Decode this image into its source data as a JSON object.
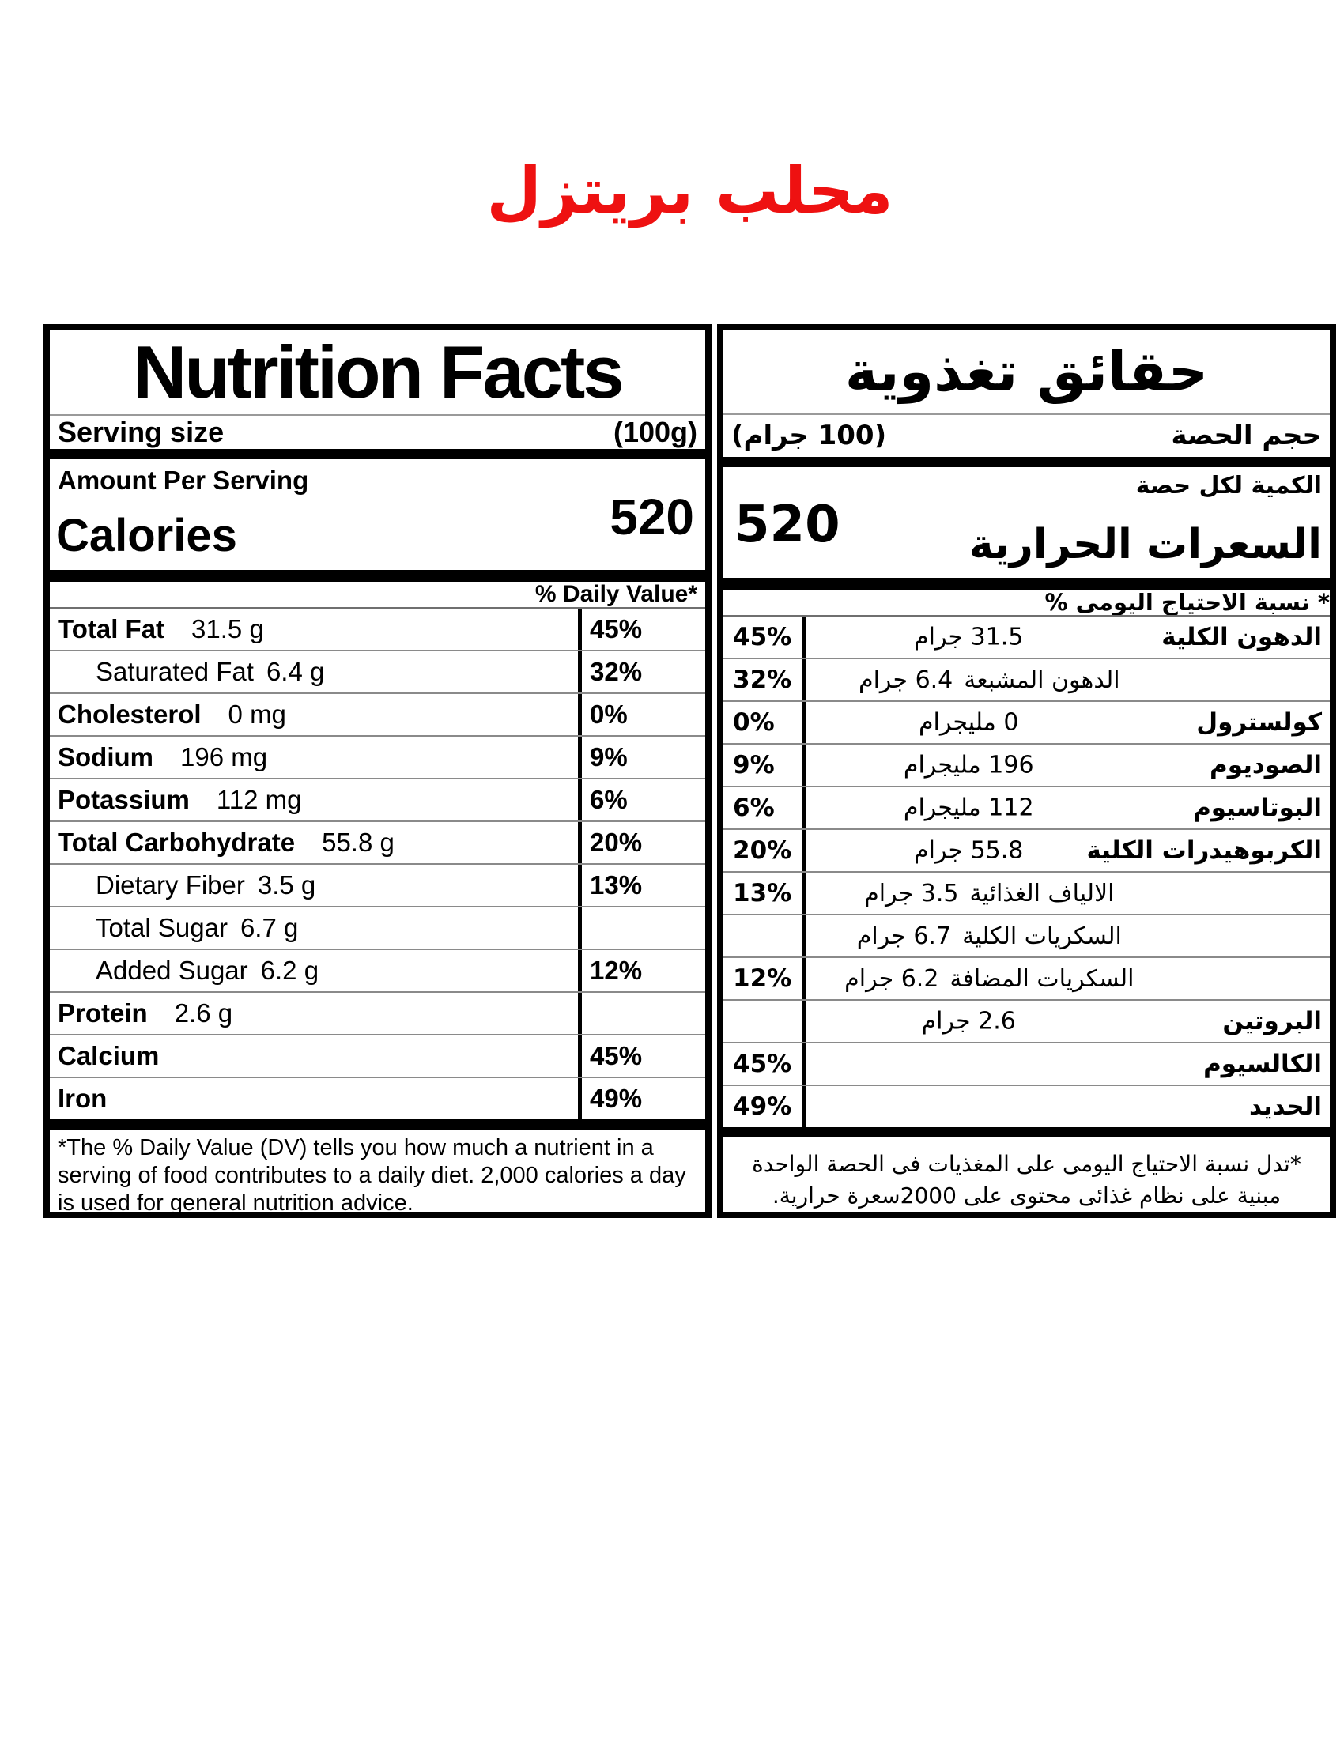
{
  "title": "محلب بريتزل",
  "title_color": "#ee1111",
  "english_panel": {
    "title": "Nutrition Facts",
    "serving_label": "Serving size",
    "serving_value": "(100g)",
    "amount_per_serving": "Amount Per Serving",
    "calories_label": "Calories",
    "calories_value": "520",
    "daily_value_header": "% Daily Value*",
    "rows": [
      {
        "label": "Total Fat",
        "amount": "31.5 g",
        "dv": "45%"
      },
      {
        "label": "Saturated Fat",
        "amount": "6.4 g",
        "dv": "32%"
      },
      {
        "label": "Cholesterol",
        "amount": "0 mg",
        "dv": "0%"
      },
      {
        "label": "Sodium",
        "amount": "196 mg",
        "dv": "9%"
      },
      {
        "label": "Potassium",
        "amount": "112 mg",
        "dv": "6%"
      },
      {
        "label": "Total Carbohydrate",
        "amount": "55.8 g",
        "dv": "20%"
      },
      {
        "label": "Dietary Fiber",
        "amount": "3.5 g",
        "dv": "13%"
      },
      {
        "label": "Total Sugar",
        "amount": "6.7 g",
        "dv": ""
      },
      {
        "label": "Added Sugar",
        "amount": "6.2 g",
        "dv": "12%"
      },
      {
        "label": "Protein",
        "amount": "2.6 g",
        "dv": ""
      },
      {
        "label": "Calcium",
        "amount": "",
        "dv": "45%"
      },
      {
        "label": "Iron",
        "amount": "",
        "dv": "49%"
      }
    ],
    "footnote": "*The % Daily Value (DV) tells you how much a nutrient in a serving of food contributes to a daily diet. 2,000 calories a day is used for general nutrition advice."
  },
  "arabic_panel": {
    "title": "حقائق تغذوية",
    "serving_label": "حجم الحصة",
    "serving_value": "(100 جرام)",
    "amount_per_serving": "الكمية لكل حصة",
    "calories_label": "السعرات الحرارية",
    "calories_value": "520",
    "daily_value_header": "* نسبة الاحتياج اليومى %",
    "rows": [
      {
        "label": "الدهون الكلية",
        "amount": "31.5 جرام",
        "dv": "45%"
      },
      {
        "label": "الدهون المشبعة",
        "amount": "6.4 جرام",
        "dv": "32%"
      },
      {
        "label": "كولسترول",
        "amount": "0 مليجرام",
        "dv": "0%"
      },
      {
        "label": "الصوديوم",
        "amount": "196  مليجرام",
        "dv": "9%"
      },
      {
        "label": "البوتاسيوم",
        "amount": "112  مليجرام",
        "dv": "6%"
      },
      {
        "label": "الكربوهيدرات الكلية",
        "amount": "55.8  جرام",
        "dv": "20%"
      },
      {
        "label": "الالياف الغذائية",
        "amount": "3.5  جرام",
        "dv": "13%"
      },
      {
        "label": "السكريات الكلية",
        "amount": "6.7 جرام",
        "dv": ""
      },
      {
        "label": "السكريات المضافة",
        "amount": "6.2 جرام",
        "dv": "12%"
      },
      {
        "label": "البروتين",
        "amount": "2.6 جرام",
        "dv": ""
      },
      {
        "label": "الكالسيوم",
        "amount": "",
        "dv": "45%"
      },
      {
        "label": "الحديد",
        "amount": "",
        "dv": "49%"
      }
    ],
    "footnote": "*تدل نسبة الاحتياج اليومى على المغذيات فى الحصة الواحدة مبنية على نظام غذائى محتوى على 2000سعرة حرارية."
  }
}
